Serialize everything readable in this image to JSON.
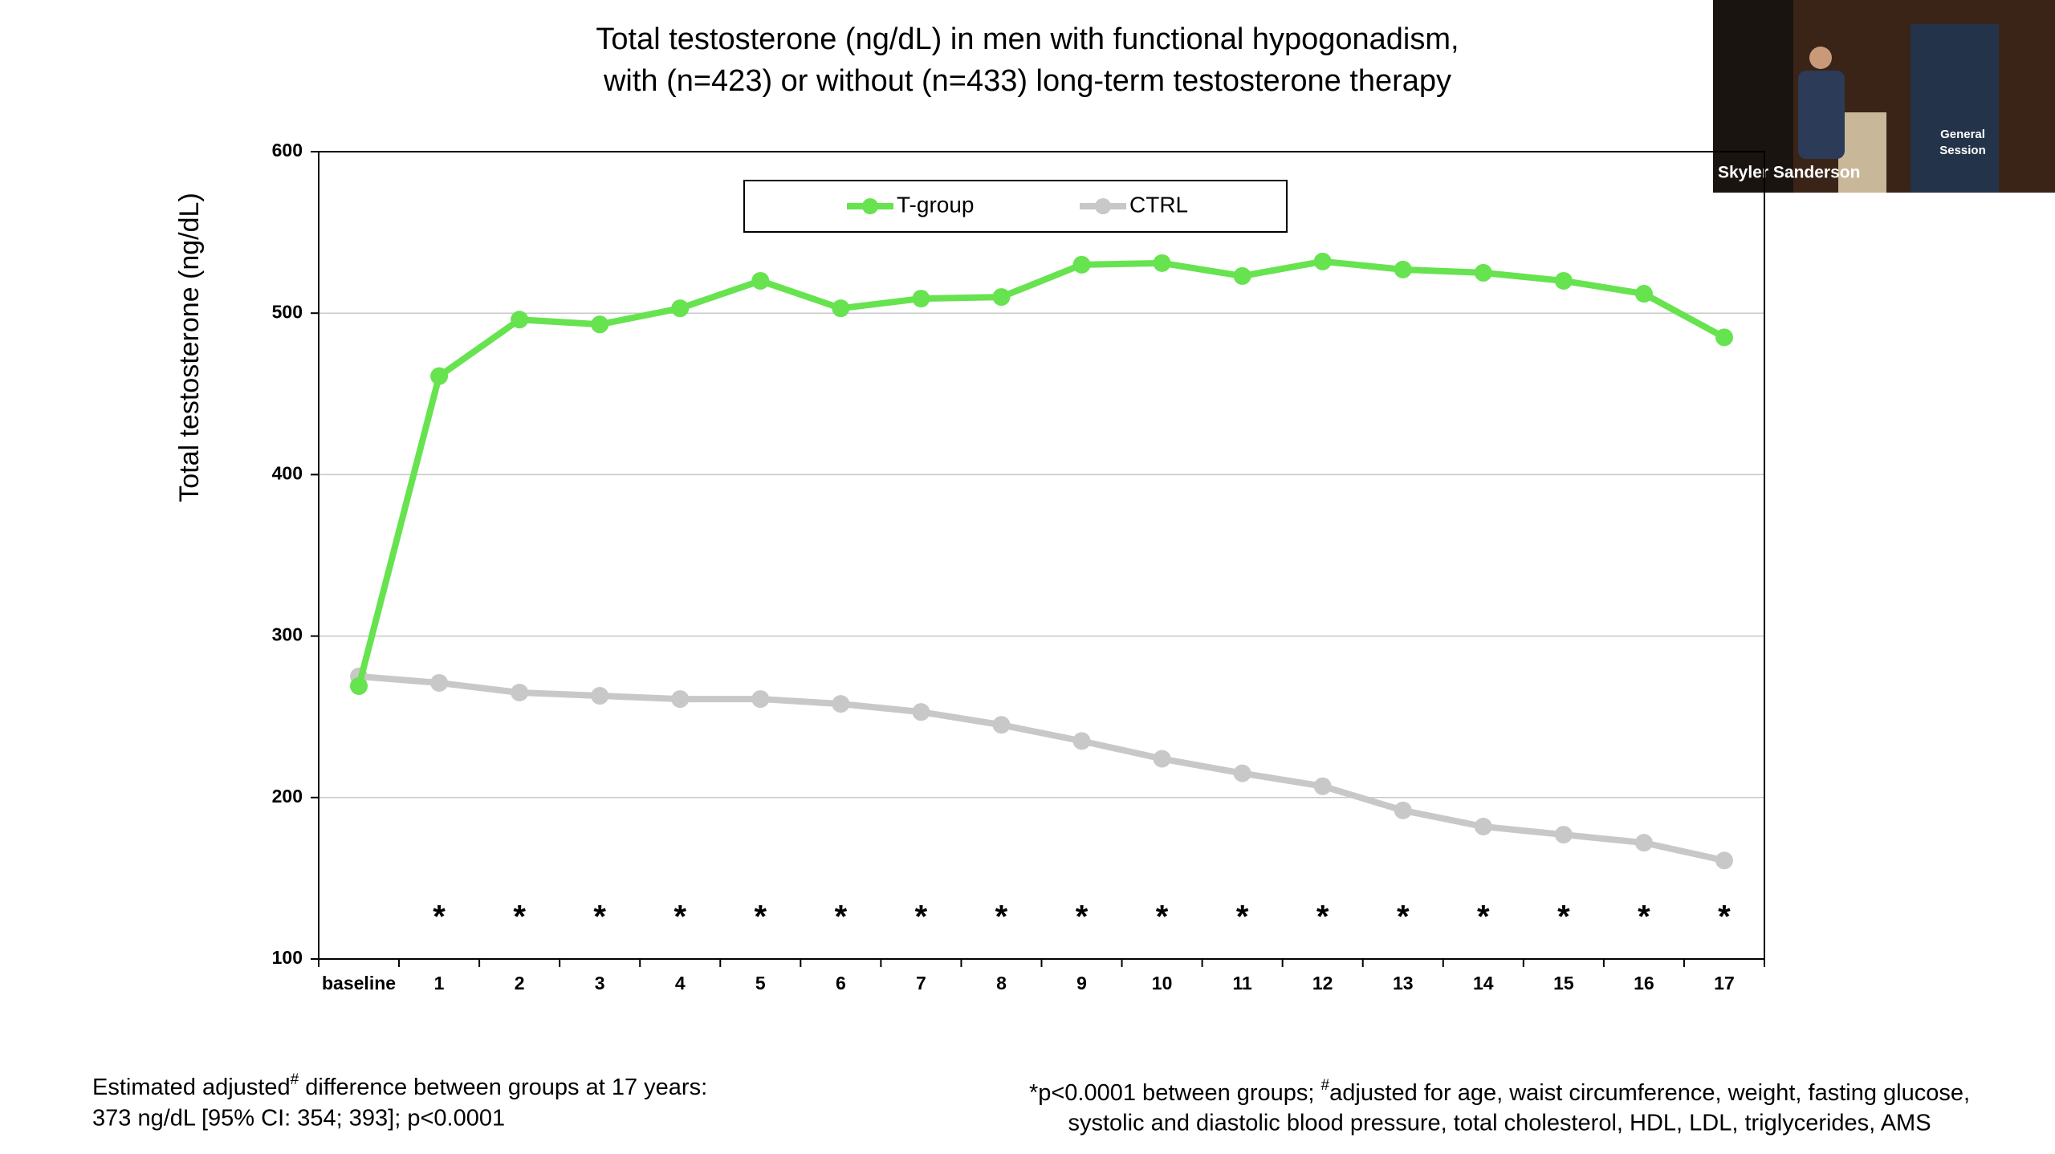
{
  "chart_data": {
    "type": "line",
    "title": [
      "Total testosterone (ng/dL) in men with functional hypogonadism,",
      "with (n=423) or without (n=433) long-term testosterone therapy"
    ],
    "y_label": "Total testosterone (ng/dL)",
    "categories": [
      "baseline",
      "1",
      "2",
      "3",
      "4",
      "5",
      "6",
      "7",
      "8",
      "9",
      "10",
      "11",
      "12",
      "13",
      "14",
      "15",
      "16",
      "17"
    ],
    "series": [
      {
        "name": "T-group",
        "color": "#66e34f",
        "values": [
          269,
          461,
          496,
          493,
          503,
          520,
          503,
          509,
          510,
          530,
          531,
          523,
          532,
          527,
          525,
          520,
          512,
          485
        ]
      },
      {
        "name": "CTRL",
        "color": "#c8c8c8",
        "values": [
          275,
          271,
          265,
          263,
          261,
          261,
          258,
          253,
          245,
          235,
          224,
          215,
          207,
          192,
          182,
          177,
          172,
          161
        ]
      }
    ],
    "significance": [
      null,
      "*",
      "*",
      "*",
      "*",
      "*",
      "*",
      "*",
      "*",
      "*",
      "*",
      "*",
      "*",
      "*",
      "*",
      "*",
      "*",
      "*"
    ],
    "ylim": [
      100,
      600
    ],
    "yticks": [
      100,
      200,
      300,
      400,
      500,
      600
    ],
    "grid": true,
    "legend": "top"
  },
  "footnote_left": {
    "line1": [
      "Estimated adjusted",
      "#",
      " difference between groups at 17 years:"
    ],
    "line2": "373 ng/dL [95% CI: 354; 393]; p<0.0001"
  },
  "footnote_right": {
    "line1": [
      "*p<0.0001 between groups; ",
      "#",
      "adjusted for age, waist circumference, weight, fasting glucose,"
    ],
    "line2": "systolic and diastolic blood pressure, total cholesterol, HDL, LDL, triglycerides, AMS"
  },
  "video": {
    "speaker": "Skyler Sanderson",
    "banner": [
      "General",
      "Session"
    ]
  }
}
